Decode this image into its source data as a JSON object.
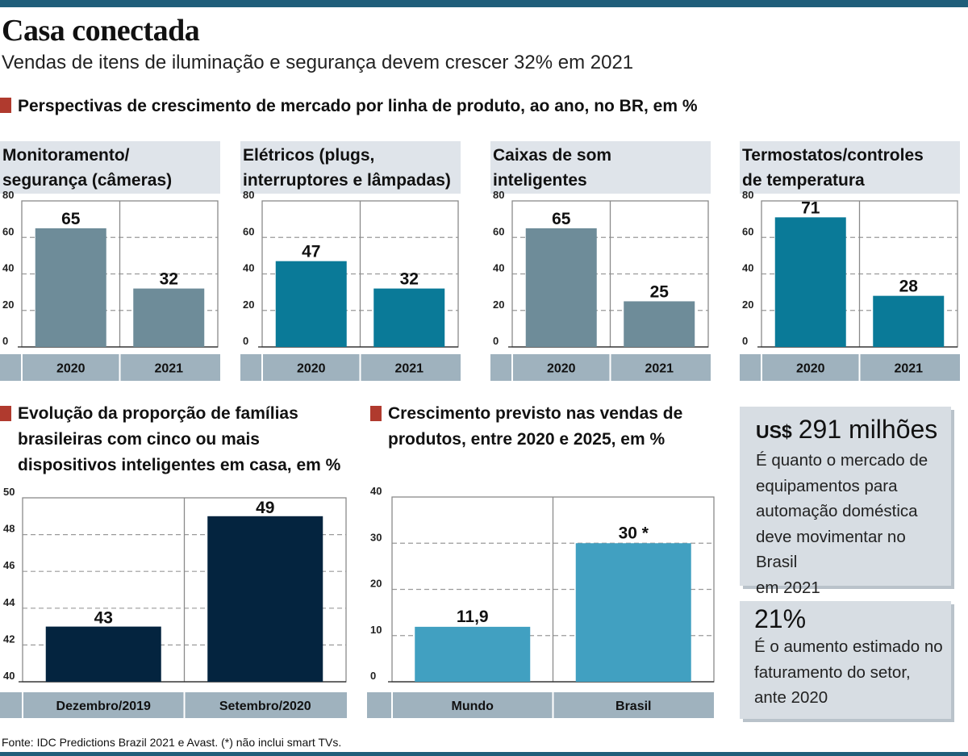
{
  "header": {
    "title": "Casa conectada",
    "subtitle": "Vendas de itens de iluminação e segurança devem crescer 32% em 2021"
  },
  "colors": {
    "top_bar": "#1f5e7a",
    "section_square": "#b03a2e",
    "gray_bar": "#6e8c99",
    "teal_bar": "#0a7a98",
    "navy_bar": "#04243f",
    "light_blue_bar": "#41a0c1",
    "panel_bg": "#dfe4ea",
    "axis_strip": "#9fb2be"
  },
  "section1": {
    "heading": "Perspectivas de crescimento de mercado por linha de produto, ao ano, no BR, em %"
  },
  "section2": {
    "heading_lines": [
      "Evolução da proporção de famílias",
      "brasileiras com cinco ou mais",
      "dispositivos inteligentes em casa, em %"
    ]
  },
  "section3": {
    "heading_lines": [
      "Crescimento previsto nas vendas de",
      "produtos, entre 2020 e 2025, em %"
    ]
  },
  "chart_data": [
    {
      "type": "bar",
      "title": "Monitoramento/ segurança (câmeras)",
      "title_lines": [
        "Monitoramento/",
        "segurança (câmeras)"
      ],
      "categories": [
        "2020",
        "2021"
      ],
      "values": [
        65,
        32
      ],
      "labels": [
        "65",
        "32"
      ],
      "ylim": [
        0,
        80
      ],
      "yticks": [
        0,
        20,
        40,
        60,
        80
      ],
      "color": "#6e8c99",
      "grid": true
    },
    {
      "type": "bar",
      "title": "Elétricos (plugs, interruptores e lâmpadas)",
      "title_lines": [
        "Elétricos (plugs,",
        "interruptores e lâmpadas)"
      ],
      "categories": [
        "2020",
        "2021"
      ],
      "values": [
        47,
        32
      ],
      "labels": [
        "47",
        "32"
      ],
      "ylim": [
        0,
        80
      ],
      "yticks": [
        0,
        20,
        40,
        60,
        80
      ],
      "color": "#0a7a98",
      "grid": true
    },
    {
      "type": "bar",
      "title": "Caixas de som inteligentes",
      "title_lines": [
        "Caixas de som",
        "inteligentes"
      ],
      "categories": [
        "2020",
        "2021"
      ],
      "values": [
        65,
        25
      ],
      "labels": [
        "65",
        "25"
      ],
      "ylim": [
        0,
        80
      ],
      "yticks": [
        0,
        20,
        40,
        60,
        80
      ],
      "color": "#6e8c99",
      "grid": true
    },
    {
      "type": "bar",
      "title": "Termostatos/controles de temperatura",
      "title_lines": [
        "Termostatos/controles",
        "de temperatura"
      ],
      "categories": [
        "2020",
        "2021"
      ],
      "values": [
        71,
        28
      ],
      "labels": [
        "71",
        "28"
      ],
      "ylim": [
        0,
        80
      ],
      "yticks": [
        0,
        20,
        40,
        60,
        80
      ],
      "color": "#0a7a98",
      "grid": true
    },
    {
      "type": "bar",
      "title": "Evolução da proporção de famílias brasileiras com cinco ou mais dispositivos inteligentes em casa, em %",
      "categories": [
        "Dezembro/2019",
        "Setembro/2020"
      ],
      "values": [
        43,
        49
      ],
      "labels": [
        "43",
        "49"
      ],
      "ylim": [
        40,
        50
      ],
      "yticks": [
        40,
        42,
        44,
        46,
        48,
        50
      ],
      "color": "#04243f",
      "grid": true
    },
    {
      "type": "bar",
      "title": "Crescimento previsto nas vendas de produtos, entre 2020 e 2025, em %",
      "categories": [
        "Mundo",
        "Brasil"
      ],
      "values": [
        11.9,
        30
      ],
      "labels": [
        "11,9",
        "30 *"
      ],
      "ylim": [
        0,
        40
      ],
      "yticks": [
        0,
        10,
        20,
        30,
        40
      ],
      "color": "#41a0c1",
      "grid": true
    }
  ],
  "info_boxes": [
    {
      "prefix": "US$",
      "value": "291 milhões",
      "lines": [
        "É quanto o mercado de",
        "equipamentos para",
        "automação doméstica",
        "deve movimentar no Brasil",
        "em 2021"
      ]
    },
    {
      "value": "21%",
      "lines": [
        "É o aumento estimado no",
        "faturamento do setor,",
        "ante 2020"
      ]
    }
  ],
  "footer": {
    "source": "Fonte: IDC Predictions Brazil 2021 e Avast. (*) não inclui smart TVs."
  }
}
